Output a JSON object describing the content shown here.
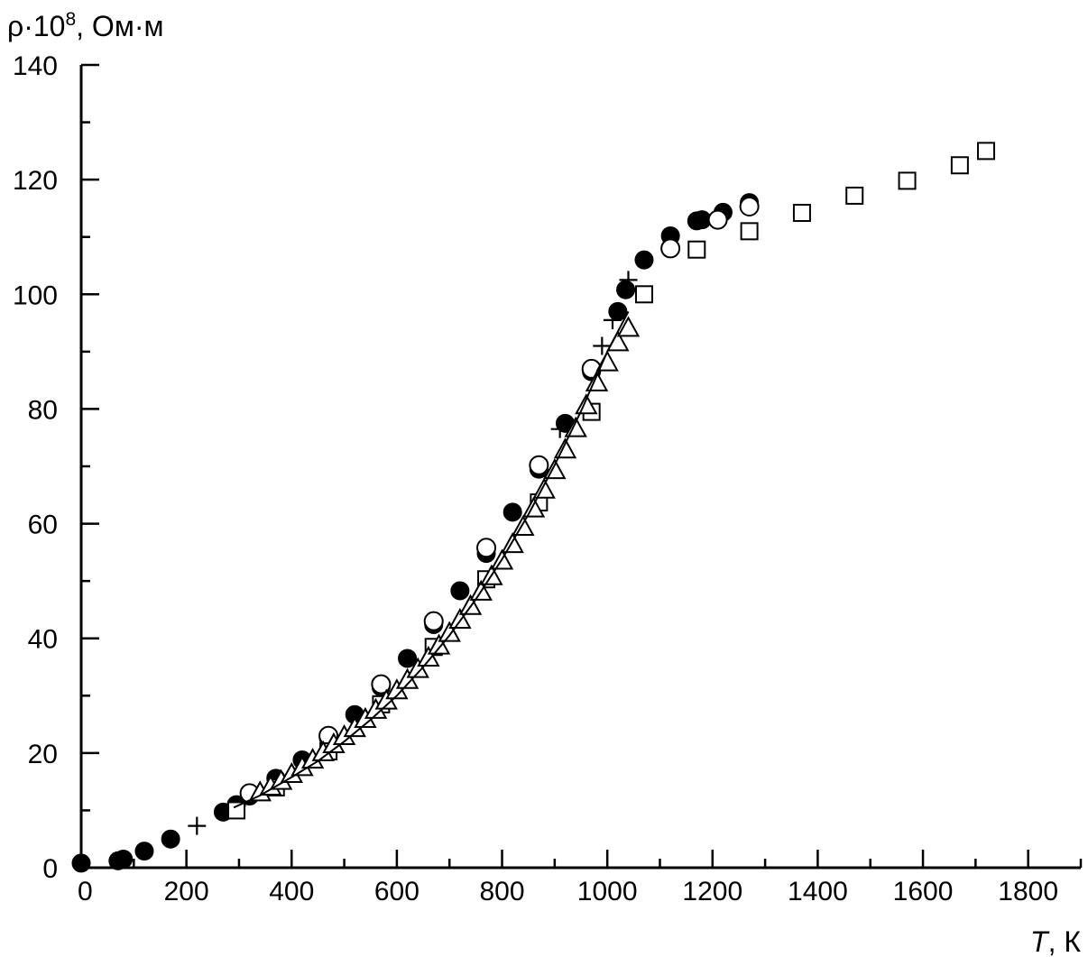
{
  "chart_data": {
    "type": "scatter",
    "ylabel_parts": {
      "base": "ρ·10",
      "sup": "8",
      "unit": ", Ом·м"
    },
    "xlabel_parts": {
      "var": "T",
      "unit": ", К"
    },
    "xlim": [
      0,
      1900
    ],
    "ylim": [
      0,
      140
    ],
    "x_ticks": [
      0,
      200,
      400,
      600,
      800,
      1000,
      1200,
      1400,
      1600,
      1800
    ],
    "x_tick_labels": [
      "0",
      "200",
      "400",
      "600",
      "800",
      "1000",
      "1200",
      "1400",
      "1600",
      "1800"
    ],
    "y_ticks": [
      0,
      20,
      40,
      60,
      80,
      100,
      120,
      140
    ],
    "y_tick_labels": [
      "0",
      "20",
      "40",
      "60",
      "80",
      "100",
      "120",
      "140"
    ],
    "grid": false,
    "series": [
      {
        "marker": "filled-circle",
        "points": [
          [
            0,
            0.8
          ],
          [
            70,
            1.2
          ],
          [
            80,
            1.5
          ],
          [
            120,
            2.9
          ],
          [
            170,
            5.0
          ],
          [
            270,
            9.7
          ],
          [
            295,
            11.0
          ],
          [
            320,
            12.5
          ],
          [
            370,
            15.6
          ],
          [
            420,
            18.8
          ],
          [
            470,
            22.6
          ],
          [
            520,
            26.7
          ],
          [
            570,
            31.5
          ],
          [
            620,
            36.5
          ],
          [
            670,
            42.4
          ],
          [
            720,
            48.3
          ],
          [
            770,
            54.8
          ],
          [
            820,
            62.0
          ],
          [
            870,
            69.5
          ],
          [
            920,
            77.5
          ],
          [
            970,
            86.5
          ],
          [
            1020,
            97.0
          ],
          [
            1035,
            100.8
          ],
          [
            1070,
            106.0
          ],
          [
            1120,
            110.2
          ],
          [
            1170,
            112.8
          ],
          [
            1180,
            113.0
          ],
          [
            1220,
            114.3
          ],
          [
            1270,
            116.0
          ]
        ]
      },
      {
        "marker": "open-circle",
        "points": [
          [
            320,
            13.0
          ],
          [
            470,
            23.0
          ],
          [
            570,
            32.0
          ],
          [
            670,
            43.0
          ],
          [
            770,
            55.8
          ],
          [
            870,
            70.2
          ],
          [
            970,
            87.0
          ],
          [
            1120,
            108.0
          ],
          [
            1210,
            113.0
          ],
          [
            1270,
            115.3
          ]
        ]
      },
      {
        "marker": "plus",
        "points": [
          [
            220,
            7.3
          ],
          [
            910,
            76.5
          ],
          [
            990,
            91.0
          ],
          [
            1010,
            95.5
          ],
          [
            1040,
            102.5
          ]
        ]
      },
      {
        "marker": "open-square",
        "points": [
          [
            295,
            10.0
          ],
          [
            370,
            14.0
          ],
          [
            470,
            20.3
          ],
          [
            570,
            28.5
          ],
          [
            670,
            38.5
          ],
          [
            770,
            50.3
          ],
          [
            870,
            63.7
          ],
          [
            970,
            79.5
          ],
          [
            1070,
            100.0
          ],
          [
            1170,
            107.8
          ],
          [
            1270,
            111.0
          ],
          [
            1370,
            114.2
          ],
          [
            1470,
            117.2
          ],
          [
            1570,
            119.8
          ],
          [
            1670,
            122.5
          ],
          [
            1720,
            125.0
          ]
        ]
      },
      {
        "marker": "open-triangle",
        "points": [
          [
            340,
            13.0
          ],
          [
            360,
            14.0
          ],
          [
            380,
            15.0
          ],
          [
            400,
            16.2
          ],
          [
            420,
            17.4
          ],
          [
            440,
            18.7
          ],
          [
            460,
            20.0
          ],
          [
            480,
            21.4
          ],
          [
            500,
            22.8
          ],
          [
            520,
            24.2
          ],
          [
            540,
            25.8
          ],
          [
            560,
            27.4
          ],
          [
            580,
            29.0
          ],
          [
            600,
            30.8
          ],
          [
            620,
            32.6
          ],
          [
            640,
            34.5
          ],
          [
            660,
            36.5
          ],
          [
            680,
            38.6
          ],
          [
            700,
            40.8
          ],
          [
            720,
            43.1
          ],
          [
            740,
            45.5
          ],
          [
            760,
            48.0
          ],
          [
            780,
            50.7
          ],
          [
            800,
            53.4
          ],
          [
            820,
            56.3
          ],
          [
            840,
            59.3
          ],
          [
            860,
            62.5
          ],
          [
            880,
            65.8
          ],
          [
            900,
            69.2
          ],
          [
            920,
            72.8
          ],
          [
            940,
            76.5
          ],
          [
            960,
            80.5
          ],
          [
            980,
            84.5
          ],
          [
            1000,
            88.0
          ],
          [
            1020,
            91.5
          ],
          [
            1040,
            94.0
          ]
        ]
      },
      {
        "marker": "line",
        "points": [
          [
            290,
            10.5
          ],
          [
            340,
            12.6
          ],
          [
            400,
            15.8
          ],
          [
            450,
            18.6
          ],
          [
            500,
            22.0
          ],
          [
            550,
            25.8
          ],
          [
            600,
            30.0
          ],
          [
            650,
            35.0
          ],
          [
            700,
            40.5
          ],
          [
            750,
            46.8
          ],
          [
            800,
            53.8
          ],
          [
            850,
            61.6
          ],
          [
            900,
            70.2
          ],
          [
            950,
            79.6
          ],
          [
            1000,
            90.0
          ],
          [
            1040,
            97.0
          ]
        ]
      }
    ]
  }
}
